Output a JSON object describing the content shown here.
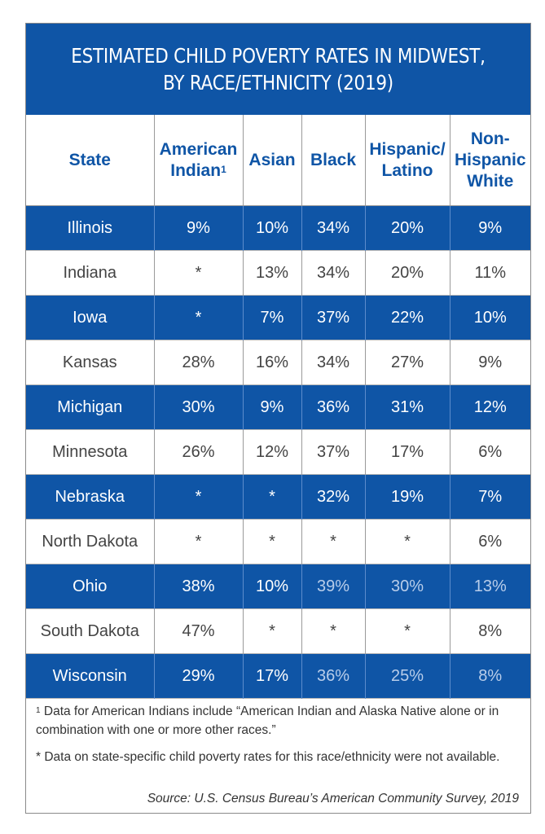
{
  "title": {
    "line1": "ESTIMATED CHILD POVERTY RATES IN MIDWEST,",
    "line2": "BY RACE/ETHNICITY (2019)"
  },
  "columns": [
    {
      "line1": "State",
      "line2": ""
    },
    {
      "line1": "American",
      "line2": "Indian",
      "sup": "1"
    },
    {
      "line1": "Asian",
      "line2": ""
    },
    {
      "line1": "Black",
      "line2": ""
    },
    {
      "line1": "Hispanic/",
      "line2": "Latino"
    },
    {
      "line1": "Non-",
      "line2": "Hispanic",
      "line3": "White"
    }
  ],
  "rows": [
    {
      "state": "Illinois",
      "values": [
        "9%",
        "10%",
        "34%",
        "20%",
        "9%"
      ]
    },
    {
      "state": "Indiana",
      "values": [
        "*",
        "13%",
        "34%",
        "20%",
        "11%"
      ]
    },
    {
      "state": "Iowa",
      "values": [
        "*",
        "7%",
        "37%",
        "22%",
        "10%"
      ]
    },
    {
      "state": "Kansas",
      "values": [
        "28%",
        "16%",
        "34%",
        "27%",
        "9%"
      ]
    },
    {
      "state": "Michigan",
      "values": [
        "30%",
        "9%",
        "36%",
        "31%",
        "12%"
      ]
    },
    {
      "state": "Minnesota",
      "values": [
        "26%",
        "12%",
        "37%",
        "17%",
        "6%"
      ]
    },
    {
      "state": "Nebraska",
      "values": [
        "*",
        "*",
        "32%",
        "19%",
        "7%"
      ]
    },
    {
      "state": "North Dakota",
      "values": [
        "*",
        "*",
        "*",
        "*",
        "6%"
      ]
    },
    {
      "state": "Ohio",
      "values": [
        "38%",
        "10%",
        "39%",
        "30%",
        "13%"
      ]
    },
    {
      "state": "South Dakota",
      "values": [
        "47%",
        "*",
        "*",
        "*",
        "8%"
      ]
    },
    {
      "state": "Wisconsin",
      "values": [
        "29%",
        "17%",
        "36%",
        "25%",
        "8%"
      ]
    }
  ],
  "notes": {
    "footnote_marker": "1",
    "footnote1": "Data for American Indians include “American Indian and Alaska Native alone or in combination with one or more other races.”",
    "footnote2": "* Data on state-specific child poverty rates for this race/ethnicity were not available.",
    "source": "Source: U.S. Census Bureau’s American Community Survey, 2019"
  },
  "colors": {
    "brand_blue": "#0f55a6",
    "header_text": "#0f55a6",
    "body_text": "#444444"
  }
}
